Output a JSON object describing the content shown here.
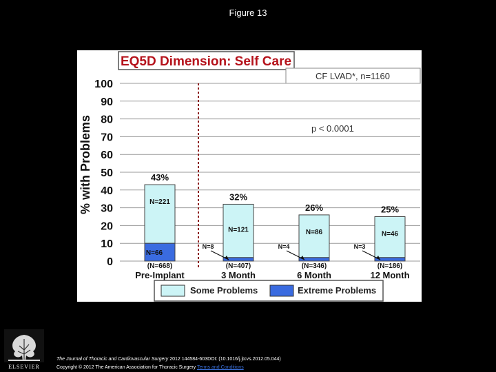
{
  "page_title": "Figure 13",
  "chart_data": {
    "type": "bar",
    "title": "EQ5D Dimension: Self Care",
    "subtitle": "CF LVAD*, n=1160",
    "annotation": "p < 0.0001",
    "ylabel": "% with Problems",
    "xlabel": "",
    "ylim": [
      0,
      100
    ],
    "yticks": [
      "0",
      "10",
      "20",
      "30",
      "40",
      "50",
      "60",
      "70",
      "80",
      "90",
      "100"
    ],
    "categories": [
      "Pre-Implant",
      "3 Month",
      "6 Month",
      "12 Month"
    ],
    "category_n": [
      "(N=668)",
      "(N=407)",
      "(N=346)",
      "(N=186)"
    ],
    "total_labels": [
      "43%",
      "32%",
      "26%",
      "25%"
    ],
    "grid": true,
    "legend_position": "bottom",
    "series": [
      {
        "name": "Some Problems",
        "color": "#ccf4f6",
        "values": [
          33,
          30,
          24,
          23
        ],
        "labels": [
          "N=221",
          "N=121",
          "N=86",
          "N=46"
        ]
      },
      {
        "name": "Extreme Problems",
        "color": "#3a6be0",
        "values": [
          10,
          2,
          2,
          2
        ],
        "labels": [
          "N=66",
          "N=8",
          "N=4",
          "N=3"
        ]
      }
    ]
  },
  "footer": {
    "journal": "The Journal of Thoracic and Cardiovascular Surgery",
    "citation": " 2012 144584-603DOI: (10.1016/j.jtcvs.2012.05.044)",
    "copyright": "Copyright © 2012 The American Association for Thoracic Surgery",
    "terms_link": "Terms and Conditions"
  },
  "logo": {
    "text": "ELSEVIER",
    "icon": "tree-icon"
  }
}
